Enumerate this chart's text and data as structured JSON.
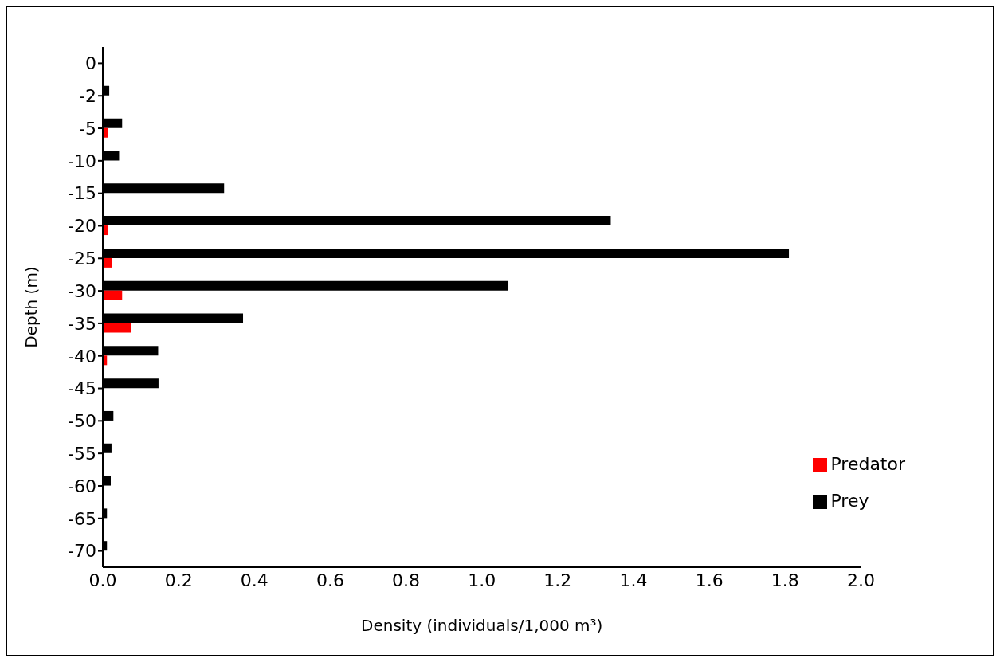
{
  "chart_data": {
    "type": "bar",
    "orientation": "horizontal",
    "xlabel": "Density (individuals/1,000 m³)",
    "ylabel": "Depth (m)",
    "categories": [
      "0",
      "-2",
      "-5",
      "-10",
      "-15",
      "-20",
      "-25",
      "-30",
      "-35",
      "-40",
      "-45",
      "-50",
      "-55",
      "-60",
      "-65",
      "-70"
    ],
    "series": [
      {
        "name": "Prey",
        "color": "#000000",
        "values": [
          0,
          0.017,
          0.051,
          0.043,
          0.32,
          1.34,
          1.81,
          1.07,
          0.37,
          0.146,
          0.147,
          0.028,
          0.023,
          0.021,
          0.011,
          0.011
        ]
      },
      {
        "name": "Predator",
        "color": "#ff0000",
        "values": [
          0,
          0,
          0.013,
          0,
          0,
          0.013,
          0.025,
          0.051,
          0.074,
          0.011,
          0,
          0,
          0,
          0,
          0,
          0
        ]
      }
    ],
    "xlim": [
      0,
      2.0
    ],
    "xticks": [
      {
        "value": 0,
        "label": "0.0"
      },
      {
        "value": 0.2,
        "label": "0.2"
      },
      {
        "value": 0.4,
        "label": "0.4"
      },
      {
        "value": 0.6,
        "label": "0.6"
      },
      {
        "value": 0.8,
        "label": "0.8"
      },
      {
        "value": 1.0,
        "label": "1.0"
      },
      {
        "value": 1.2,
        "label": "1.2"
      },
      {
        "value": 1.4,
        "label": "1.4"
      },
      {
        "value": 1.6,
        "label": "1.6"
      },
      {
        "value": 1.8,
        "label": "1.8"
      },
      {
        "value": 2.0,
        "label": "2.0"
      }
    ],
    "grid": false,
    "legend": "bottom right"
  }
}
